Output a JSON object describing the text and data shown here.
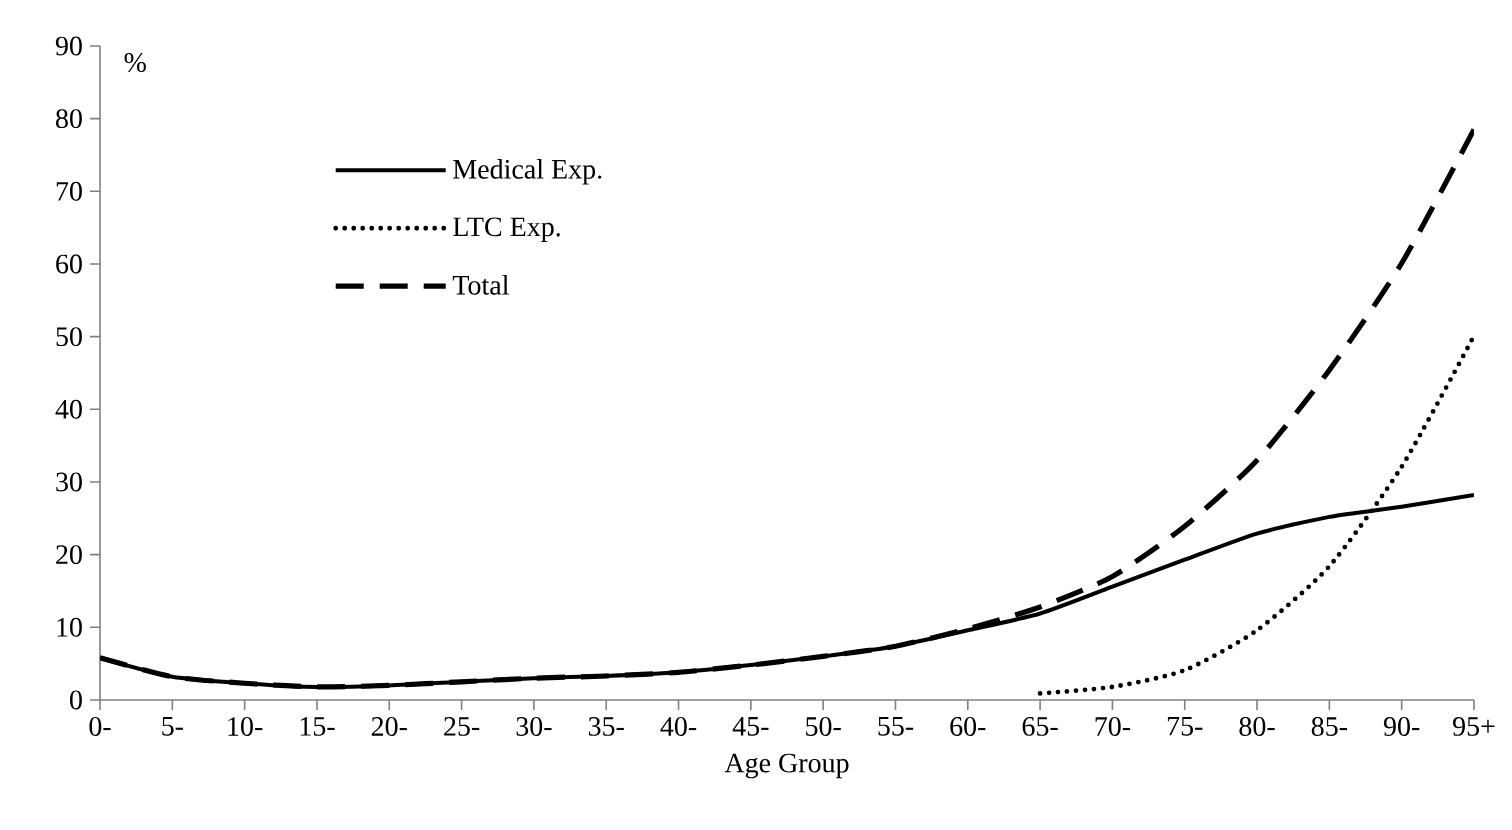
{
  "chart_data": {
    "type": "line",
    "xlabel": "Age Group",
    "ylabel": "%",
    "categories": [
      "0-",
      "5-",
      "10-",
      "15-",
      "20-",
      "25-",
      "30-",
      "35-",
      "40-",
      "45-",
      "50-",
      "55-",
      "60-",
      "65-",
      "70-",
      "75-",
      "80-",
      "85-",
      "90-",
      "95+"
    ],
    "series": [
      {
        "name": "Medical Exp.",
        "color": "#000000",
        "line_style": "solid",
        "values": [
          5.8,
          3.2,
          2.3,
          1.8,
          2.0,
          2.5,
          3.0,
          3.3,
          3.8,
          4.8,
          6.0,
          7.4,
          9.6,
          11.9,
          15.6,
          19.3,
          22.9,
          25.2,
          26.6,
          28.2
        ]
      },
      {
        "name": "LTC Exp.",
        "color": "#000000",
        "line_style": "dotted",
        "values": [
          null,
          null,
          null,
          null,
          null,
          null,
          null,
          null,
          null,
          null,
          null,
          null,
          null,
          0.9,
          1.8,
          4.1,
          9.6,
          18.4,
          32.1,
          50.1
        ]
      },
      {
        "name": "Total",
        "color": "#000000",
        "line_style": "dashed",
        "values": [
          5.8,
          3.2,
          2.3,
          1.8,
          2.0,
          2.5,
          3.0,
          3.3,
          3.8,
          4.8,
          6.0,
          7.4,
          9.8,
          12.8,
          17.0,
          23.9,
          33.0,
          45.4,
          60.1,
          78.5
        ]
      }
    ],
    "ylim": [
      0,
      90
    ],
    "yticks": [
      0,
      10,
      20,
      30,
      40,
      50,
      60,
      70,
      80,
      90
    ],
    "grid": false,
    "legend": "top left",
    "marker": "none"
  }
}
